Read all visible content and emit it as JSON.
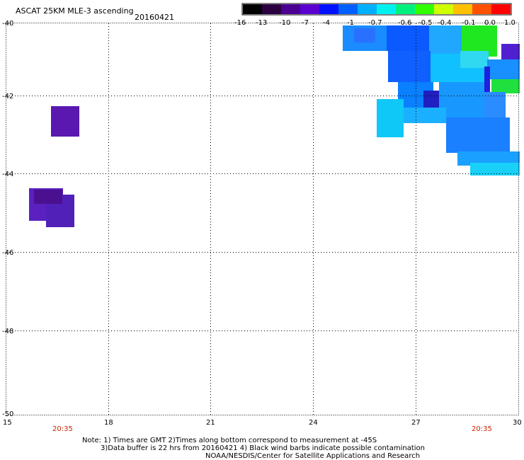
{
  "header": {
    "title": "ASCAT 25KM MLE-3 ascending",
    "date": "20160421"
  },
  "colorbar": {
    "labels": [
      "-16",
      "-13",
      "-10",
      "-7",
      "-4",
      "-1",
      "-0.7",
      "-0.6",
      "-0.5",
      "-0.4",
      "-0.1",
      "0.0",
      "1.0"
    ],
    "colors": [
      "#000000",
      "#2a0040",
      "#4a0090",
      "#5a00d0",
      "#0010ff",
      "#0060ff",
      "#00b0ff",
      "#00f0f0",
      "#00f080",
      "#30ff00",
      "#d0ff00",
      "#ffc000",
      "#ff5000",
      "#ff0000"
    ]
  },
  "axes": {
    "lon_ticks": [
      "15",
      "18",
      "21",
      "24",
      "27",
      "30"
    ],
    "lon_values": [
      15,
      18,
      21,
      24,
      27,
      30
    ],
    "lat_ticks": [
      "-40",
      "-42",
      "-44",
      "-46",
      "-48",
      "-50"
    ],
    "lat_values": [
      -40,
      -42,
      -44,
      -46,
      -48,
      -50
    ],
    "lon_range": [
      15,
      30
    ],
    "lat_range": [
      -50,
      -40
    ],
    "grid": true
  },
  "times": {
    "left": "20:35",
    "right": "20:35"
  },
  "notes": {
    "line1": "Note: 1) Times are GMT 2)Times along bottom correspond to measurement at -45S",
    "line2": "3)Data buffer is 22 hrs from 20160421 4) Black wind barbs indicate possible contamination",
    "line3": "NOAA/NESDIS/Center for Satellite Applications and Research"
  }
}
